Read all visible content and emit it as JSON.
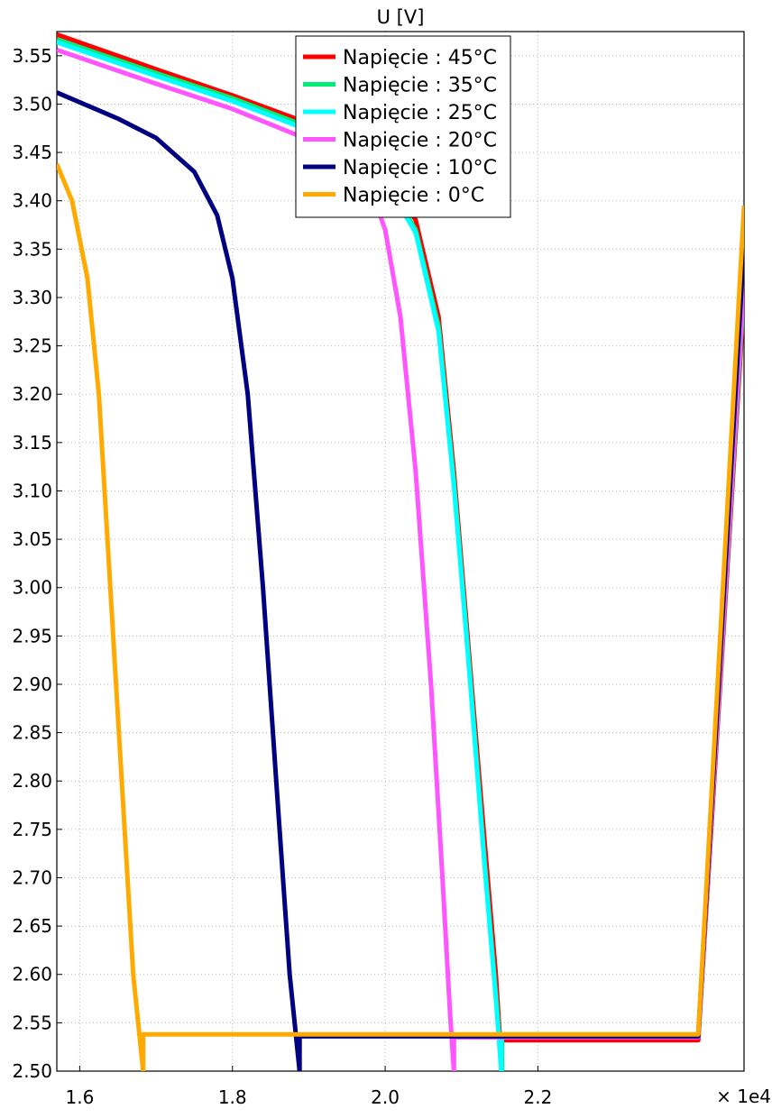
{
  "chart_data": {
    "type": "line",
    "title": "U [V]",
    "xlabel": "",
    "ylabel": "",
    "x_multiplier_label": "× 1e4",
    "xlim": [
      1.57,
      2.47
    ],
    "ylim": [
      2.5,
      3.575
    ],
    "x_ticks": [
      1.6,
      1.8,
      2.0,
      2.2
    ],
    "x_tick_labels": [
      "1.6",
      "1.8",
      "2.0",
      "2.2"
    ],
    "y_ticks": [
      2.5,
      2.55,
      2.6,
      2.65,
      2.7,
      2.75,
      2.8,
      2.85,
      2.9,
      2.95,
      3.0,
      3.05,
      3.1,
      3.15,
      3.2,
      3.25,
      3.3,
      3.35,
      3.4,
      3.45,
      3.5,
      3.55
    ],
    "y_tick_labels": [
      "2.50",
      "2.55",
      "2.60",
      "2.65",
      "2.70",
      "2.75",
      "2.80",
      "2.85",
      "2.90",
      "2.95",
      "3.00",
      "3.05",
      "3.10",
      "3.15",
      "3.20",
      "3.25",
      "3.30",
      "3.35",
      "3.40",
      "3.45",
      "3.50",
      "3.55"
    ],
    "grid": true,
    "legend_position": "top-center",
    "series": [
      {
        "name": "Napięcie : 45°C",
        "color": "#ff0000",
        "points": [
          [
            1.57,
            3.572
          ],
          [
            1.7,
            3.536
          ],
          [
            1.8,
            3.509
          ],
          [
            1.9,
            3.48
          ],
          [
            1.95,
            3.46
          ],
          [
            2.0,
            3.43
          ],
          [
            2.04,
            3.38
          ],
          [
            2.07,
            3.28
          ],
          [
            2.09,
            3.12
          ],
          [
            2.11,
            2.93
          ],
          [
            2.13,
            2.74
          ],
          [
            2.145,
            2.6
          ],
          [
            2.153,
            2.5
          ],
          [
            2.153,
            2.532
          ],
          [
            2.2,
            2.532
          ],
          [
            2.4,
            2.532
          ],
          [
            2.41,
            2.532
          ],
          [
            2.47,
            3.3
          ]
        ]
      },
      {
        "name": "Napięcie : 35°C",
        "color": "#00ee77",
        "points": [
          [
            1.57,
            3.567
          ],
          [
            1.7,
            3.532
          ],
          [
            1.8,
            3.506
          ],
          [
            1.9,
            3.476
          ],
          [
            1.95,
            3.455
          ],
          [
            2.0,
            3.423
          ],
          [
            2.04,
            3.37
          ],
          [
            2.07,
            3.27
          ],
          [
            2.09,
            3.11
          ],
          [
            2.11,
            2.92
          ],
          [
            2.13,
            2.72
          ],
          [
            2.145,
            2.58
          ],
          [
            2.153,
            2.5
          ],
          [
            2.153,
            2.538
          ],
          [
            2.2,
            2.538
          ],
          [
            2.4,
            2.538
          ],
          [
            2.41,
            2.538
          ],
          [
            2.47,
            3.31
          ]
        ]
      },
      {
        "name": "Napięcie : 25°C",
        "color": "#00ffff",
        "points": [
          [
            1.57,
            3.564
          ],
          [
            1.7,
            3.529
          ],
          [
            1.8,
            3.503
          ],
          [
            1.9,
            3.473
          ],
          [
            1.95,
            3.452
          ],
          [
            2.0,
            3.42
          ],
          [
            2.04,
            3.367
          ],
          [
            2.07,
            3.265
          ],
          [
            2.09,
            3.105
          ],
          [
            2.11,
            2.915
          ],
          [
            2.13,
            2.715
          ],
          [
            2.145,
            2.575
          ],
          [
            2.152,
            2.5
          ],
          [
            2.152,
            2.536
          ],
          [
            2.2,
            2.536
          ],
          [
            2.4,
            2.536
          ],
          [
            2.41,
            2.536
          ],
          [
            2.47,
            3.32
          ]
        ]
      },
      {
        "name": "Napięcie : 20°C",
        "color": "#ff55ff",
        "points": [
          [
            1.57,
            3.556
          ],
          [
            1.7,
            3.521
          ],
          [
            1.8,
            3.495
          ],
          [
            1.9,
            3.463
          ],
          [
            1.95,
            3.44
          ],
          [
            1.98,
            3.415
          ],
          [
            2.0,
            3.37
          ],
          [
            2.02,
            3.28
          ],
          [
            2.04,
            3.12
          ],
          [
            2.06,
            2.9
          ],
          [
            2.075,
            2.7
          ],
          [
            2.085,
            2.56
          ],
          [
            2.09,
            2.5
          ],
          [
            2.09,
            2.535
          ],
          [
            2.2,
            2.535
          ],
          [
            2.4,
            2.535
          ],
          [
            2.41,
            2.535
          ],
          [
            2.47,
            3.32
          ]
        ]
      },
      {
        "name": "Napięcie : 10°C",
        "color": "#000080",
        "points": [
          [
            1.57,
            3.512
          ],
          [
            1.65,
            3.485
          ],
          [
            1.7,
            3.465
          ],
          [
            1.75,
            3.43
          ],
          [
            1.78,
            3.385
          ],
          [
            1.8,
            3.32
          ],
          [
            1.82,
            3.2
          ],
          [
            1.84,
            3.0
          ],
          [
            1.86,
            2.77
          ],
          [
            1.875,
            2.6
          ],
          [
            1.888,
            2.5
          ],
          [
            1.888,
            2.536
          ],
          [
            2.0,
            2.536
          ],
          [
            2.2,
            2.536
          ],
          [
            2.41,
            2.536
          ],
          [
            2.47,
            3.355
          ]
        ]
      },
      {
        "name": "Napięcie : 0°C",
        "color": "#ffaa00",
        "points": [
          [
            1.57,
            3.438
          ],
          [
            1.59,
            3.4
          ],
          [
            1.61,
            3.32
          ],
          [
            1.625,
            3.2
          ],
          [
            1.64,
            3.0
          ],
          [
            1.655,
            2.8
          ],
          [
            1.67,
            2.6
          ],
          [
            1.683,
            2.5
          ],
          [
            1.683,
            2.538
          ],
          [
            2.0,
            2.538
          ],
          [
            2.2,
            2.538
          ],
          [
            2.41,
            2.538
          ],
          [
            2.47,
            3.395
          ]
        ]
      }
    ]
  }
}
